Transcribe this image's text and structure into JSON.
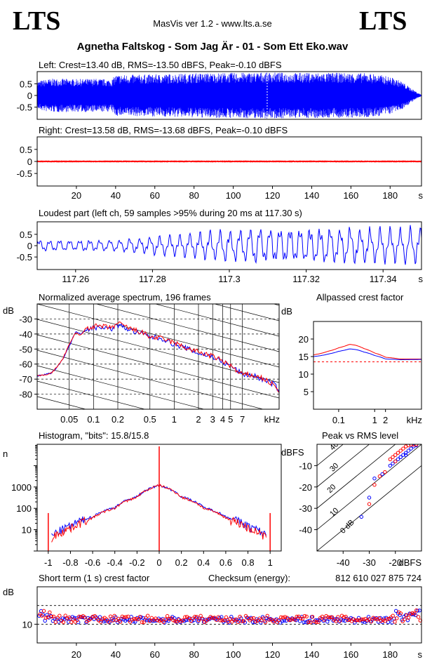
{
  "header": {
    "logo_left": "LTS",
    "logo_right": "LTS",
    "app": "MasVis ver 1.2 - www.lts.a.se",
    "file": "Agnetha Faltskog - Som Jag Är - 01 - Som Ett Eko.wav"
  },
  "chart_data": [
    {
      "type": "line",
      "title": "Left: Crest=13.40 dB, RMS=-13.50 dBFS, Peak=-0.10 dBFS",
      "color": "#0000ff",
      "yticks": [
        "0.5",
        "0",
        "-0.5"
      ],
      "ylim": [
        -1,
        1
      ],
      "xlim": [
        0,
        196
      ],
      "duration_s": 196,
      "marker_s": 117.3,
      "envelope": {
        "t": [
          0,
          5,
          10,
          20,
          30,
          38,
          40,
          60,
          80,
          100,
          117,
          130,
          150,
          170,
          180,
          186,
          190,
          194,
          196
        ],
        "amp": [
          0.6,
          0.7,
          0.72,
          0.7,
          0.72,
          0.68,
          0.88,
          0.9,
          0.95,
          0.97,
          0.99,
          0.97,
          0.97,
          0.95,
          0.8,
          0.6,
          0.35,
          0.12,
          0.03
        ]
      }
    },
    {
      "type": "line",
      "title": "Right: Crest=13.58 dB, RMS=-13.68 dBFS, Peak=-0.10 dBFS",
      "color": "#ff0000",
      "yticks": [
        "0.5",
        "0",
        "-0.5"
      ],
      "ylim": [
        -1,
        1
      ],
      "xlim": [
        0,
        196
      ],
      "xticks": [
        "20",
        "40",
        "60",
        "80",
        "100",
        "120",
        "140",
        "160",
        "180"
      ],
      "xunit": "s",
      "envelope": {
        "t": [
          0,
          5,
          10,
          20,
          30,
          38,
          40,
          60,
          80,
          100,
          117,
          130,
          150,
          170,
          180,
          186,
          190,
          194,
          196
        ],
        "amp": [
          0.7,
          0.75,
          0.76,
          0.74,
          0.75,
          0.74,
          0.9,
          0.92,
          0.95,
          0.97,
          0.99,
          0.97,
          0.96,
          0.96,
          0.9,
          0.72,
          0.45,
          0.15,
          0.04
        ]
      }
    },
    {
      "type": "line",
      "title": "Loudest part (left  ch, 59 samples >95% during 20 ms at 117.30 s)",
      "color": "#0000ff",
      "yticks": [
        "0.5",
        "0",
        "-0.5"
      ],
      "ylim": [
        -1,
        1
      ],
      "xlim": [
        117.25,
        117.35
      ],
      "xticks": [
        "117.26",
        "117.28",
        "117.3",
        "117.32",
        "117.34"
      ],
      "xunit": "s"
    },
    {
      "type": "line",
      "title": "Normalized average spectrum, 196 frames",
      "ylabel": "dB",
      "yticks": [
        "-30",
        "-40",
        "-50",
        "-60",
        "-70",
        "-80"
      ],
      "ylim": [
        -90,
        -20
      ],
      "xscale": "log",
      "xlim": [
        0.02,
        20
      ],
      "xticks": [
        "0.05",
        "0.1",
        "0.2",
        "0.5",
        "1",
        "2",
        "3",
        "4",
        "5",
        "7"
      ],
      "xunit": "kHz",
      "series": [
        {
          "color": "#0000ff",
          "x": [
            0.02,
            0.03,
            0.04,
            0.05,
            0.06,
            0.07,
            0.08,
            0.1,
            0.13,
            0.16,
            0.2,
            0.25,
            0.3,
            0.4,
            0.5,
            0.7,
            1,
            1.5,
            2,
            3,
            4,
            5,
            6,
            7,
            8,
            10,
            12,
            15,
            18,
            20
          ],
          "y": [
            -68,
            -66,
            -58,
            -48,
            -38,
            -40,
            -37,
            -36,
            -35,
            -37,
            -34,
            -36,
            -38,
            -40,
            -42,
            -43,
            -47,
            -50,
            -53,
            -55,
            -59,
            -61,
            -64,
            -67,
            -67,
            -68,
            -70,
            -72,
            -74,
            -78
          ]
        },
        {
          "color": "#ff0000",
          "x": [
            0.02,
            0.03,
            0.04,
            0.05,
            0.06,
            0.07,
            0.08,
            0.1,
            0.13,
            0.16,
            0.2,
            0.25,
            0.3,
            0.4,
            0.5,
            0.7,
            1,
            1.5,
            2,
            3,
            4,
            5,
            6,
            7,
            8,
            10,
            12,
            15,
            18,
            20
          ],
          "y": [
            -68,
            -66,
            -58,
            -47,
            -39,
            -41,
            -36,
            -35,
            -35,
            -36,
            -33,
            -35,
            -37,
            -39,
            -42,
            -43,
            -46,
            -50,
            -52,
            -55,
            -58,
            -61,
            -65,
            -67,
            -67,
            -68,
            -69,
            -72,
            -75,
            -79
          ]
        }
      ]
    },
    {
      "type": "line",
      "title": "Allpassed crest factor",
      "ylabel": "dB",
      "yticks": [
        "20",
        "15",
        "10",
        "5"
      ],
      "ylim": [
        0,
        25
      ],
      "xscale": "log",
      "xlim": [
        0.02,
        20
      ],
      "xticks": [
        "0.1",
        "1",
        "2"
      ],
      "xunit": "kHz",
      "reference_db": 13.5,
      "series": [
        {
          "color": "#ff0000",
          "x": [
            0.02,
            0.05,
            0.1,
            0.2,
            0.3,
            0.5,
            1,
            2,
            5,
            20
          ],
          "y": [
            15.5,
            16.5,
            17.5,
            18.5,
            18.2,
            17.3,
            16,
            14.8,
            14.3,
            14.3
          ]
        },
        {
          "color": "#0000ff",
          "x": [
            0.02,
            0.05,
            0.1,
            0.2,
            0.3,
            0.5,
            1,
            2,
            5,
            20
          ],
          "y": [
            15.0,
            15.7,
            16.5,
            17.2,
            17.0,
            16.3,
            15.3,
            14.3,
            14.1,
            14.2
          ]
        }
      ]
    },
    {
      "type": "line",
      "title": "Histogram, \"bits\": 15.8/15.8",
      "ylabel": "n",
      "yscale": "log",
      "yticks": [
        "1000",
        "100",
        "10"
      ],
      "ylim": [
        1,
        100000
      ],
      "xlim": [
        -1.1,
        1.1
      ],
      "xticks": [
        "-1",
        "-0.8",
        "-0.6",
        "-0.4",
        "-0.2",
        "0",
        "0.2",
        "0.4",
        "0.6",
        "0.8",
        "1"
      ],
      "series": [
        {
          "color": "#0000ff",
          "x": [
            -0.97,
            -0.8,
            -0.6,
            -0.4,
            -0.2,
            0,
            0.2,
            0.4,
            0.6,
            0.8,
            0.97
          ],
          "y": [
            5,
            15,
            40,
            110,
            350,
            1200,
            350,
            110,
            40,
            15,
            5
          ]
        },
        {
          "color": "#ff0000",
          "x": [
            -0.97,
            -0.8,
            -0.6,
            -0.4,
            -0.2,
            0,
            0.2,
            0.4,
            0.6,
            0.8,
            0.97
          ],
          "y": [
            4,
            12,
            35,
            100,
            330,
            1200,
            330,
            100,
            35,
            12,
            4
          ]
        }
      ],
      "spikes": [
        {
          "x": -1,
          "y": 60
        },
        {
          "x": 0,
          "y": 80000
        },
        {
          "x": 1,
          "y": 60
        }
      ]
    },
    {
      "type": "scatter",
      "title": "Peak vs RMS level",
      "ylabel": "dBFS",
      "xlabel": "dBFS",
      "yticks": [
        "-10",
        "-20",
        "-30",
        "-40"
      ],
      "ylim": [
        -50,
        0
      ],
      "xticks": [
        "-40",
        "-30",
        "-20"
      ],
      "xlim": [
        -50,
        -10
      ],
      "diagonals": [
        "0 dB",
        "10",
        "20",
        "30",
        "40"
      ],
      "series": [
        {
          "color": "#0000ff",
          "x": [
            -22,
            -21,
            -20,
            -19,
            -18,
            -17,
            -16,
            -15,
            -14,
            -13,
            -12,
            -16,
            -18,
            -25,
            -28,
            -30,
            -33
          ],
          "y": [
            -10,
            -9,
            -8,
            -7,
            -6,
            -5,
            -4,
            -3,
            -2,
            -1,
            -0.5,
            -5,
            -6,
            -14,
            -16,
            -25,
            -34
          ]
        },
        {
          "color": "#ff0000",
          "x": [
            -22,
            -21,
            -20,
            -19,
            -18,
            -17,
            -16,
            -15,
            -14,
            -13,
            -12,
            -24,
            -26,
            -28,
            -30,
            -20
          ],
          "y": [
            -7,
            -6,
            -5,
            -4,
            -3,
            -2,
            -1,
            -0.5,
            -0.2,
            -0.1,
            -0.1,
            -13,
            -15,
            -19,
            -28,
            -8
          ]
        }
      ]
    },
    {
      "type": "scatter",
      "title": "Short term (1 s) crest factor",
      "checksum_label": "Checksum (energy):",
      "checksum_value": "812 610 027 875 724",
      "ylabel": "dB",
      "yticks": [
        "10"
      ],
      "ylim": [
        5,
        20
      ],
      "xlim": [
        0,
        196
      ],
      "xticks": [
        "20",
        "40",
        "60",
        "80",
        "100",
        "120",
        "140",
        "160",
        "180"
      ],
      "xunit": "s",
      "ref_lines": [
        10,
        15
      ],
      "series": [
        {
          "color": "#0000ff",
          "base": 11.2,
          "spread": 0.8
        },
        {
          "color": "#ff0000",
          "base": 11.4,
          "spread": 0.9
        }
      ]
    }
  ]
}
